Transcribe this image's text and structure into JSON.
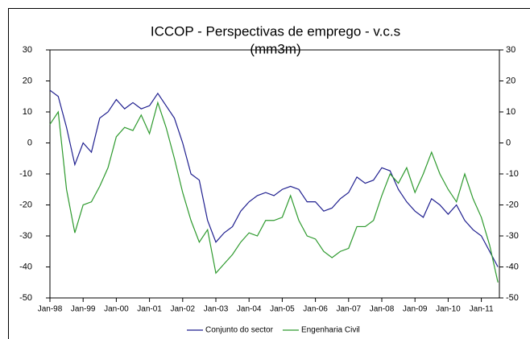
{
  "chart_data": {
    "type": "line",
    "title": "ICCOP - Perspectivas de emprego - v.c.s",
    "subtitle": "(mm3m)",
    "categories": [
      "Jan-98",
      null,
      null,
      null,
      "Jan-99",
      null,
      null,
      null,
      "Jan-00",
      null,
      null,
      null,
      "Jan-01",
      null,
      null,
      null,
      "Jan-02",
      null,
      null,
      null,
      "Jan-03",
      null,
      null,
      null,
      "Jan-04",
      null,
      null,
      null,
      "Jan-05",
      null,
      null,
      null,
      "Jan-06",
      null,
      null,
      null,
      "Jan-07",
      null,
      null,
      null,
      "Jan-08",
      null,
      null,
      null,
      "Jan-09",
      null,
      null,
      null,
      "Jan-10",
      null,
      null,
      null,
      "Jan-11",
      null,
      null
    ],
    "series": [
      {
        "name": "Conjunto do sector",
        "color": "#1f1f8f",
        "values": [
          17,
          15,
          5,
          -7,
          0,
          -3,
          8,
          10,
          14,
          11,
          13,
          11,
          12,
          16,
          12,
          8,
          0,
          -10,
          -12,
          -25,
          -32,
          -29,
          -27,
          -22,
          -19,
          -17,
          -16,
          -17,
          -15,
          -14,
          -15,
          -19,
          -19,
          -22,
          -21,
          -18,
          -16,
          -11,
          -13,
          -12,
          -8,
          -9,
          -15,
          -19,
          -22,
          -24,
          -18,
          -20,
          -23,
          -20,
          -25,
          -28,
          -30,
          -35,
          -40
        ]
      },
      {
        "name": "Engenharia Civil",
        "color": "#2e9a2e",
        "values": [
          6,
          10,
          -15,
          -29,
          -20,
          -19,
          -14,
          -8,
          2,
          5,
          4,
          9,
          3,
          13,
          5,
          -5,
          -16,
          -25,
          -32,
          -28,
          -42,
          -39,
          -36,
          -32,
          -29,
          -30,
          -25,
          -25,
          -24,
          -17,
          -25,
          -30,
          -31,
          -35,
          -37,
          -35,
          -34,
          -27,
          -27,
          -25,
          -17,
          -10,
          -13,
          -8,
          -16,
          -10,
          -3,
          -10,
          -15,
          -19,
          -10,
          -18,
          -24,
          -33,
          -45
        ]
      }
    ],
    "ylim": [
      -50,
      30
    ],
    "yticks": [
      -50,
      -40,
      -30,
      -20,
      -10,
      0,
      10,
      20,
      30
    ],
    "y2lim": [
      -50,
      30
    ],
    "y2ticks": [
      -50,
      -40,
      -30,
      -20,
      -10,
      0,
      10,
      20,
      30
    ],
    "legend": "bottom"
  }
}
